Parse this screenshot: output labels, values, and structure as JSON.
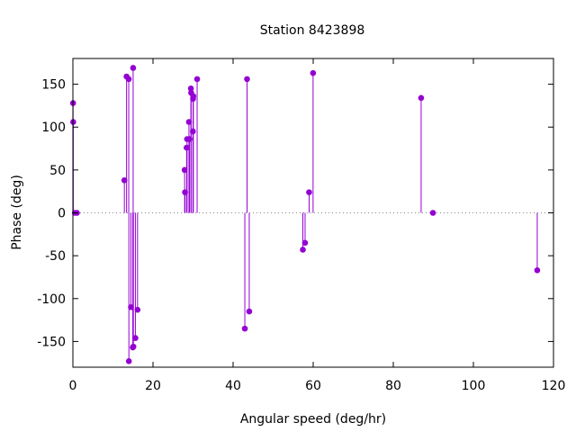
{
  "chart_data": {
    "type": "scatter",
    "style": "impulses with points",
    "title": "Station 8423898",
    "xlabel": "Angular speed (deg/hr)",
    "ylabel": "Phase (deg)",
    "xlim": [
      0,
      120
    ],
    "ylim": [
      -180,
      180
    ],
    "xticks": [
      "0",
      "20",
      "40",
      "60",
      "80",
      "100",
      "120"
    ],
    "yticks": [
      "-150",
      "-100",
      "-50",
      "0",
      "50",
      "100",
      "150"
    ],
    "xtick_values": [
      0,
      20,
      40,
      60,
      80,
      100,
      120
    ],
    "ytick_values": [
      -150,
      -100,
      -50,
      0,
      50,
      100,
      150
    ],
    "grid": false,
    "zero_line": "dotted",
    "color": "#9400d3",
    "points": [
      {
        "x": 0.04,
        "y": 128
      },
      {
        "x": 0.08,
        "y": 106
      },
      {
        "x": 0.5,
        "y": 0
      },
      {
        "x": 1.0,
        "y": 0
      },
      {
        "x": 12.85,
        "y": 38
      },
      {
        "x": 13.4,
        "y": 159
      },
      {
        "x": 13.94,
        "y": 156
      },
      {
        "x": 13.98,
        "y": -173
      },
      {
        "x": 14.5,
        "y": -110
      },
      {
        "x": 14.96,
        "y": -157
      },
      {
        "x": 15.04,
        "y": 169
      },
      {
        "x": 15.1,
        "y": -156
      },
      {
        "x": 15.6,
        "y": -146
      },
      {
        "x": 16.14,
        "y": -113
      },
      {
        "x": 27.9,
        "y": 50
      },
      {
        "x": 28.0,
        "y": 24
      },
      {
        "x": 28.4,
        "y": 76
      },
      {
        "x": 28.51,
        "y": 86
      },
      {
        "x": 28.98,
        "y": 106
      },
      {
        "x": 29.1,
        "y": 86
      },
      {
        "x": 29.46,
        "y": 145
      },
      {
        "x": 29.53,
        "y": 140
      },
      {
        "x": 29.96,
        "y": 95
      },
      {
        "x": 30.0,
        "y": 133
      },
      {
        "x": 30.08,
        "y": 136
      },
      {
        "x": 31.02,
        "y": 156
      },
      {
        "x": 42.93,
        "y": -135
      },
      {
        "x": 43.48,
        "y": 156
      },
      {
        "x": 44.03,
        "y": -115
      },
      {
        "x": 57.42,
        "y": -43
      },
      {
        "x": 57.97,
        "y": -35
      },
      {
        "x": 58.98,
        "y": 24
      },
      {
        "x": 59.97,
        "y": 163
      },
      {
        "x": 86.95,
        "y": 134
      },
      {
        "x": 89.9,
        "y": 0
      },
      {
        "x": 115.94,
        "y": -67
      }
    ]
  }
}
